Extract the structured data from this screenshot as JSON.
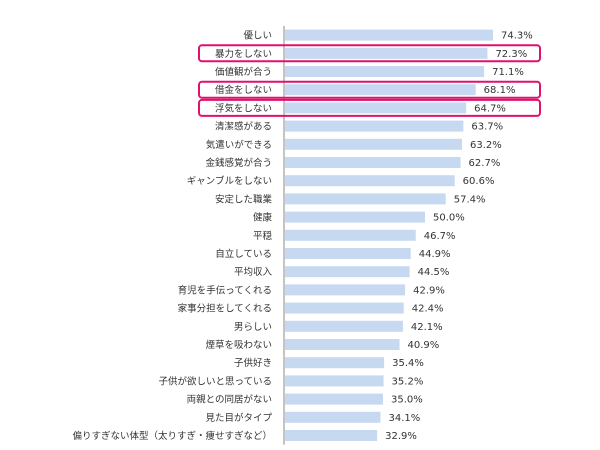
{
  "chart_data": {
    "type": "bar",
    "orientation": "horizontal",
    "categories": [
      "優しい",
      "暴力をしない",
      "価値観が合う",
      "借金をしない",
      "浮気をしない",
      "清潔感がある",
      "気遣いができる",
      "金銭感覚が合う",
      "ギャンブルをしない",
      "安定した職業",
      "健康",
      "平穏",
      "自立している",
      "平均収入",
      "育児を手伝ってくれる",
      "家事分担をしてくれる",
      "男らしい",
      "煙草を吸わない",
      "子供好き",
      "子供が欲しいと思っている",
      "両親との同居がない",
      "見た目がタイプ",
      "偏りすぎない体型（太りすぎ・痩せすぎなど）"
    ],
    "values": [
      74.3,
      72.3,
      71.1,
      68.1,
      64.7,
      63.7,
      63.2,
      62.7,
      60.6,
      57.4,
      50.0,
      46.7,
      44.9,
      44.5,
      42.9,
      42.4,
      42.1,
      40.9,
      35.4,
      35.2,
      35.0,
      34.1,
      32.9
    ],
    "value_labels": [
      "74.3%",
      "72.3%",
      "71.1%",
      "68.1%",
      "64.7%",
      "63.7%",
      "63.2%",
      "62.7%",
      "60.6%",
      "57.4%",
      "50.0%",
      "46.7%",
      "44.9%",
      "44.5%",
      "42.9%",
      "42.4%",
      "42.1%",
      "40.9%",
      "35.4%",
      "35.2%",
      "35.0%",
      "34.1%",
      "32.9%"
    ],
    "highlighted_categories": [
      "暴力をしない",
      "借金をしない",
      "浮気をしない"
    ],
    "xlim": [
      0,
      100
    ],
    "grid": false,
    "colors": {
      "bar": "#c6d9f1",
      "highlight_border": "#e0106f",
      "axis": "#888888",
      "text": "#333333"
    }
  }
}
